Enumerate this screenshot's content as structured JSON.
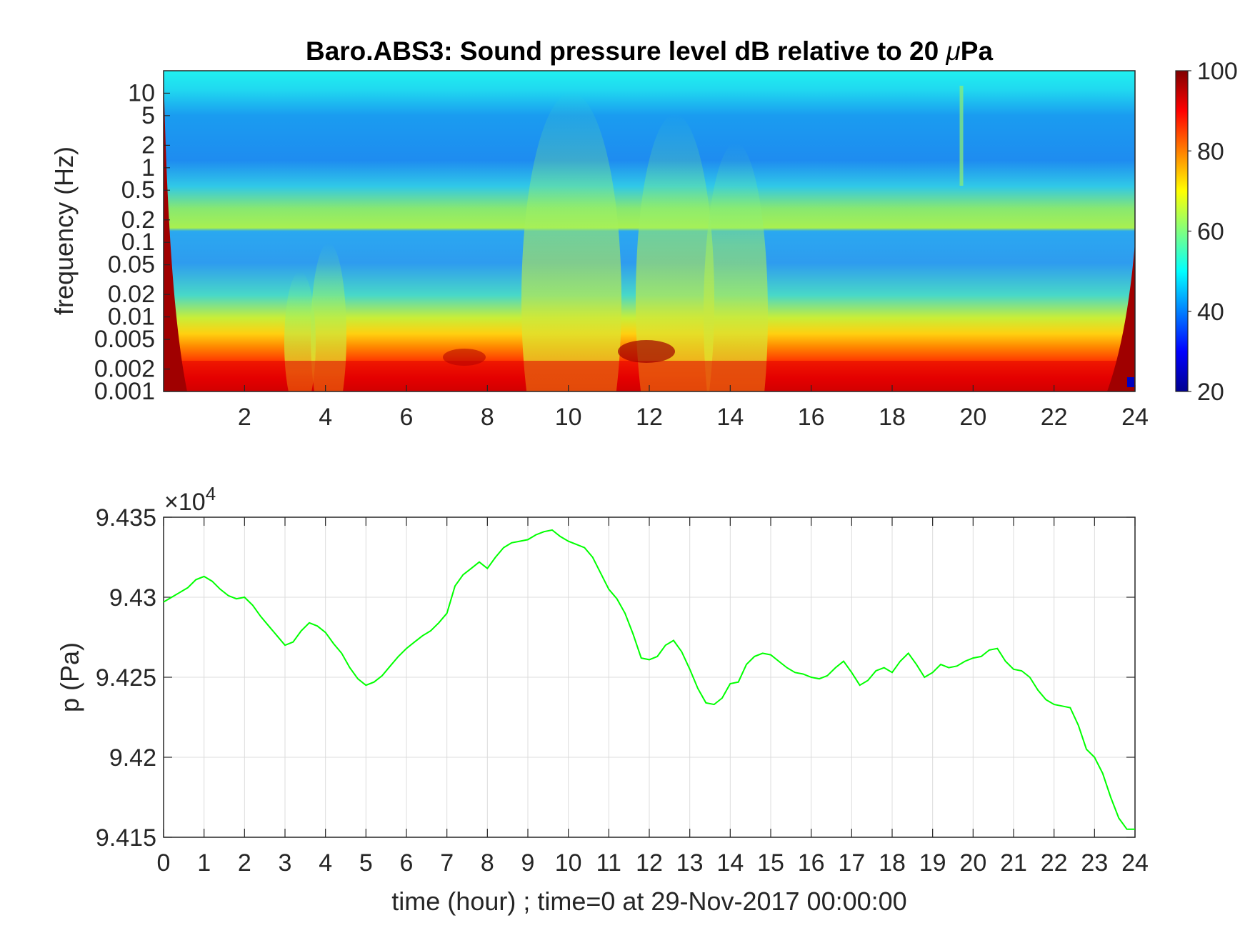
{
  "chart_data": [
    {
      "type": "heatmap",
      "title_main": "Baro.ABS3: Sound pressure level dB relative to 20 ",
      "title_mu": "μ",
      "title_unit": "Pa",
      "ylabel": "frequency (Hz)",
      "yscale": "log",
      "xlim": [
        0,
        24
      ],
      "ylim": [
        0.001,
        20
      ],
      "x_tick_labels": [
        "2",
        "4",
        "6",
        "8",
        "10",
        "12",
        "14",
        "16",
        "18",
        "20",
        "22",
        "24"
      ],
      "y_tick_labels": [
        "10",
        "5",
        "2",
        "1",
        "0.5",
        "0.2",
        "0.1",
        "0.05",
        "0.02",
        "0.01",
        "0.005",
        "0.002",
        "0.001"
      ],
      "colormap": "jet",
      "colorbar": {
        "range": [
          20,
          100
        ],
        "tick_labels": [
          "100",
          "80",
          "60",
          "40",
          "20"
        ]
      }
    },
    {
      "type": "line",
      "xlabel": "time (hour) ; time=0 at 29-Nov-2017 00:00:00",
      "ylabel": "p (Pa)",
      "exponent_prefix": "×10",
      "exponent_power": "4",
      "xlim": [
        0,
        24
      ],
      "ylim": [
        94150,
        94350
      ],
      "grid": true,
      "line_color": "#00ff00",
      "x_tick_labels": [
        "0",
        "1",
        "2",
        "3",
        "4",
        "5",
        "6",
        "7",
        "8",
        "9",
        "10",
        "11",
        "12",
        "13",
        "14",
        "15",
        "16",
        "17",
        "18",
        "19",
        "20",
        "21",
        "22",
        "23",
        "24"
      ],
      "y_tick_labels": [
        "9.435",
        "9.43",
        "9.425",
        "9.42",
        "9.415"
      ],
      "series": [
        {
          "x": [
            0,
            0.2,
            0.4,
            0.6,
            0.8,
            1.0,
            1.2,
            1.4,
            1.6,
            1.8,
            2.0,
            2.2,
            2.4,
            2.6,
            2.8,
            3.0,
            3.2,
            3.4,
            3.6,
            3.8,
            4.0,
            4.2,
            4.4,
            4.6,
            4.8,
            5.0,
            5.2,
            5.4,
            5.6,
            5.8,
            6.0,
            6.2,
            6.4,
            6.6,
            6.8,
            7.0,
            7.2,
            7.4,
            7.6,
            7.8,
            8.0,
            8.2,
            8.4,
            8.6,
            8.8,
            9.0,
            9.2,
            9.4,
            9.6,
            9.8,
            10.0,
            10.2,
            10.4,
            10.6,
            10.8,
            11.0,
            11.2,
            11.4,
            11.6,
            11.8,
            12.0,
            12.2,
            12.4,
            12.6,
            12.8,
            13.0,
            13.2,
            13.4,
            13.6,
            13.8,
            14.0,
            14.2,
            14.4,
            14.6,
            14.8,
            15.0,
            15.2,
            15.4,
            15.6,
            15.8,
            16.0,
            16.2,
            16.4,
            16.6,
            16.8,
            17.0,
            17.2,
            17.4,
            17.6,
            17.8,
            18.0,
            18.2,
            18.4,
            18.6,
            18.8,
            19.0,
            19.2,
            19.4,
            19.6,
            19.8,
            20.0,
            20.2,
            20.4,
            20.6,
            20.8,
            21.0,
            21.2,
            21.4,
            21.6,
            21.8,
            22.0,
            22.2,
            22.4,
            22.6,
            22.8,
            23.0,
            23.2,
            23.4,
            23.6,
            23.8,
            24.0
          ],
          "values": [
            94297,
            94300,
            94303,
            94306,
            94311,
            94313,
            94310,
            94305,
            94301,
            94299,
            94300,
            94295,
            94288,
            94282,
            94276,
            94270,
            94272,
            94279,
            94284,
            94282,
            94278,
            94271,
            94265,
            94256,
            94249,
            94245,
            94247,
            94251,
            94257,
            94263,
            94268,
            94272,
            94276,
            94279,
            94284,
            94290,
            94307,
            94314,
            94318,
            94322,
            94318,
            94325,
            94331,
            94334,
            94335,
            94336,
            94339,
            94341,
            94342,
            94338,
            94335,
            94333,
            94331,
            94325,
            94315,
            94305,
            94299,
            94290,
            94277,
            94262,
            94261,
            94263,
            94270,
            94273,
            94266,
            94255,
            94243,
            94234,
            94233,
            94237,
            94246,
            94247,
            94258,
            94263,
            94265,
            94264,
            94260,
            94256,
            94253,
            94252,
            94250,
            94249,
            94251,
            94256,
            94260,
            94253,
            94245,
            94248,
            94254,
            94256,
            94253,
            94260,
            94265,
            94258,
            94250,
            94253,
            94258,
            94256,
            94257,
            94260,
            94262,
            94263,
            94267,
            94268,
            94260,
            94255,
            94254,
            94250,
            94242,
            94236,
            94233,
            94232,
            94231,
            94220,
            94205,
            94200,
            94190,
            94175,
            94162,
            94155,
            94155
          ]
        }
      ]
    }
  ]
}
